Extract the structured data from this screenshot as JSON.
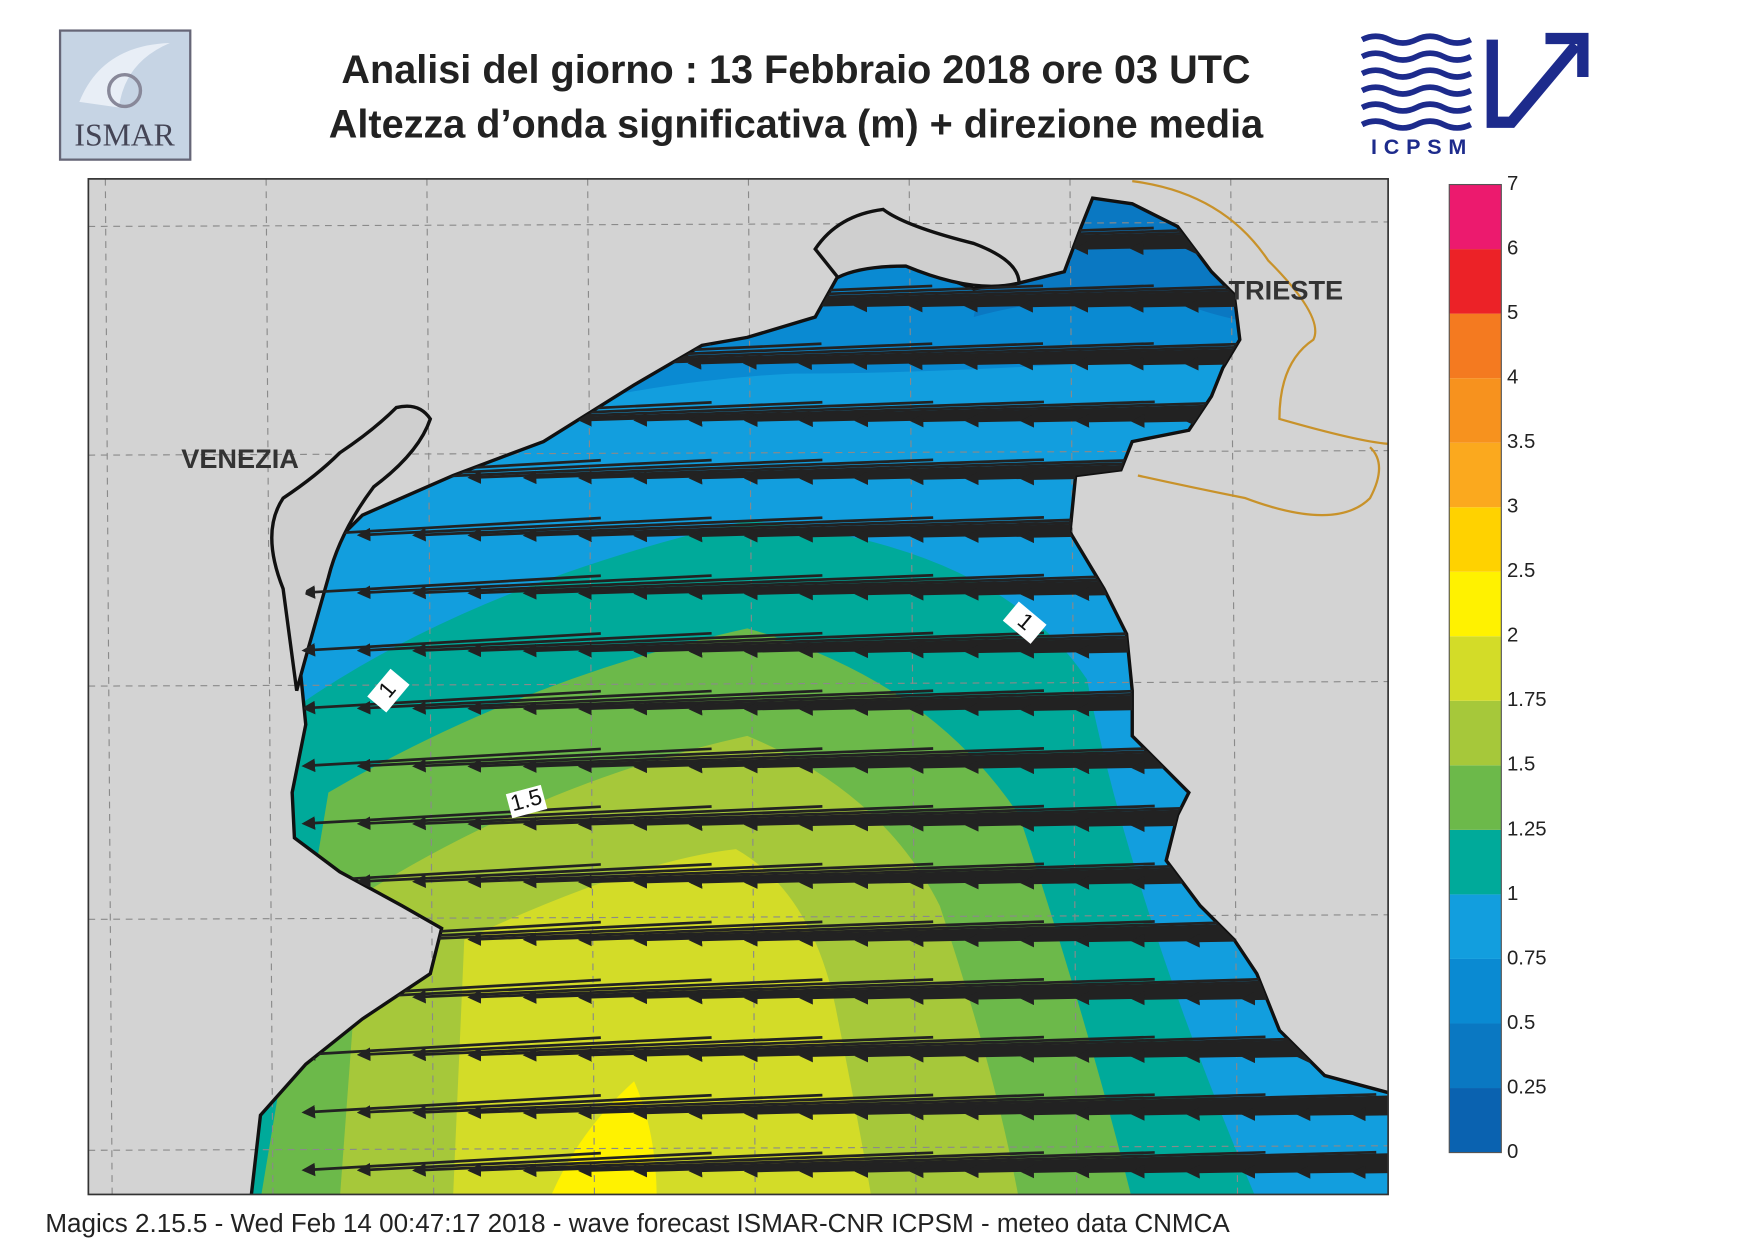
{
  "header": {
    "title_line1": "Analisi del giorno :  13  Febbraio 2018   ore 03 UTC",
    "title_line2": "Altezza d’onda significativa (m) + direzione media",
    "logo_left": "ISMAR",
    "logo_right": "ICPSM"
  },
  "map": {
    "places": [
      "VENEZIA",
      "TRIESTE"
    ],
    "contour_labels": [
      1,
      1.5,
      1
    ]
  },
  "colorbar": {
    "levels": [
      0,
      0.25,
      0.5,
      0.75,
      1,
      1.25,
      1.5,
      1.75,
      2,
      2.5,
      3,
      3.5,
      4,
      5,
      6,
      7
    ],
    "colors": [
      "#0a62b0",
      "#0a78c2",
      "#0a8ad2",
      "#129ede",
      "#00aa9a",
      "#6cb94a",
      "#a6c83a",
      "#d3dc28",
      "#fff200",
      "#ffd200",
      "#fba91e",
      "#f7921e",
      "#f47a20",
      "#ec2227",
      "#ec1a6e"
    ]
  },
  "footer": "Magics 2.15.5 - Wed Feb 14 00:47:17 2018 - wave forecast  ISMAR-CNR  ICPSM - meteo data   CNMCA"
}
